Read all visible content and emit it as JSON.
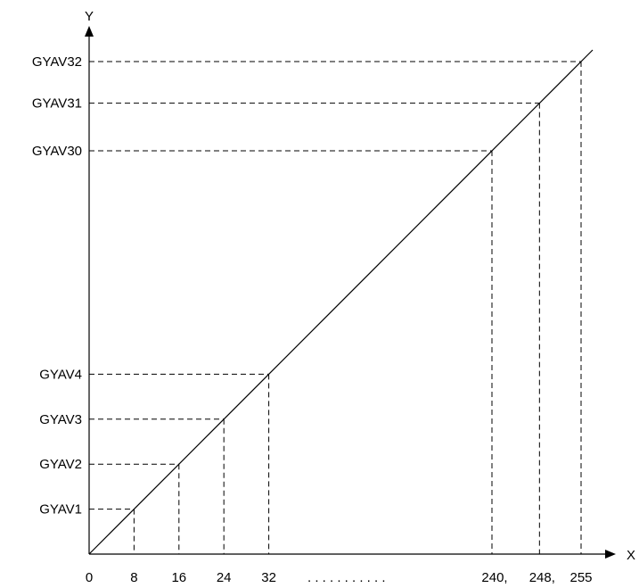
{
  "chart_data": {
    "type": "line",
    "title": "",
    "xlabel": "X",
    "ylabel": "Y",
    "origin_label": "0",
    "x_ticks": [
      {
        "label": "8",
        "value": 8
      },
      {
        "label": "16",
        "value": 16
      },
      {
        "label": "24",
        "value": 24
      },
      {
        "label": "32",
        "value": 32
      },
      {
        "label": "240,",
        "value": 240
      },
      {
        "label": "248,",
        "value": 248
      },
      {
        "label": "255",
        "value": 255
      }
    ],
    "x_ellipsis": ". . . . . . . . . . .",
    "y_ticks": [
      {
        "label": "GYAV1",
        "x": 8
      },
      {
        "label": "GYAV2",
        "x": 16
      },
      {
        "label": "GYAV3",
        "x": 24
      },
      {
        "label": "GYAV4",
        "x": 32
      },
      {
        "label": "GYAV30",
        "x": 240
      },
      {
        "label": "GYAV31",
        "x": 248
      },
      {
        "label": "GYAV32",
        "x": 255
      }
    ],
    "line": {
      "from": [
        0,
        0
      ],
      "to": [
        255,
        255
      ]
    },
    "guides": "dashed",
    "grid": false
  }
}
